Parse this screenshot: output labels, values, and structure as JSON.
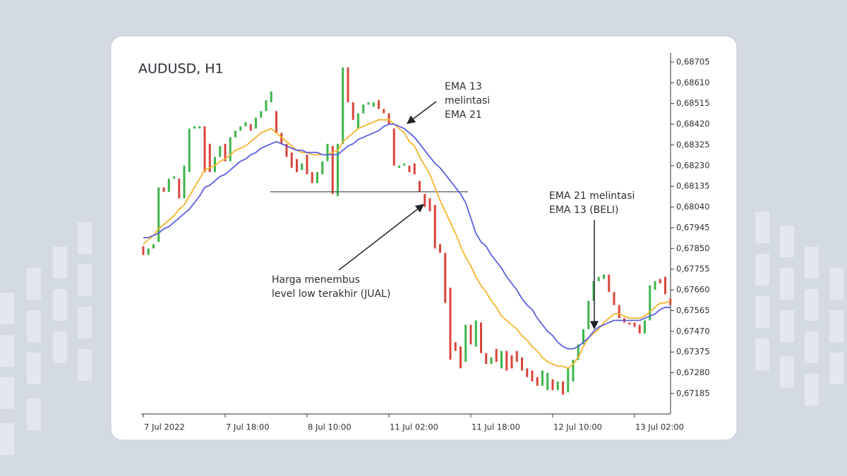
{
  "chart_data": {
    "type": "candlestick",
    "title": "AUDUSD, H1",
    "categories": [
      "7 Jul 2022",
      null,
      null,
      null,
      null,
      null,
      null,
      null,
      null,
      null,
      null,
      null,
      null,
      null,
      null,
      null,
      "7 Jul 18:00",
      null,
      null,
      null,
      null,
      null,
      null,
      null,
      null,
      null,
      null,
      null,
      null,
      null,
      null,
      null,
      "8 Jul 10:00",
      null,
      null,
      null,
      null,
      null,
      null,
      null,
      null,
      null,
      null,
      null,
      null,
      null,
      null,
      null,
      "11 Jul 02:00",
      null,
      null,
      null,
      null,
      null,
      null,
      null,
      null,
      null,
      null,
      null,
      null,
      null,
      null,
      null,
      "11 Jul 18:00",
      null,
      null,
      null,
      null,
      null,
      null,
      null,
      null,
      null,
      null,
      null,
      null,
      null,
      null,
      null,
      "12 Jul 10:00",
      null,
      null,
      null,
      null,
      null,
      null,
      null,
      null,
      null,
      null,
      null,
      null,
      null,
      null,
      null,
      "13 Jul 02:00",
      null,
      null,
      null,
      null,
      null,
      null,
      null
    ],
    "open": [
      0.6786,
      0.6782,
      0.6785,
      0.6788,
      0.6813,
      0.6811,
      0.6817,
      0.6817,
      0.6808,
      0.682,
      0.684,
      0.684,
      0.6841,
      0.6833,
      0.682,
      0.6827,
      0.6833,
      0.6825,
      0.6836,
      0.6839,
      0.6841,
      0.6842,
      0.684,
      0.6845,
      0.6848,
      0.6852,
      0.6848,
      0.6838,
      0.6833,
      0.6829,
      0.6826,
      0.6821,
      0.6828,
      0.682,
      0.6815,
      0.6819,
      0.6825,
      0.6832,
      0.6809,
      0.6833,
      0.6868,
      0.6852,
      0.684,
      0.6847,
      0.6851,
      0.685,
      0.6853,
      0.6849,
      0.6847,
      0.684,
      0.6822,
      0.6823,
      0.6823,
      0.6824,
      0.6816,
      0.681,
      0.6808,
      0.6805,
      0.6787,
      0.6783,
      0.6767,
      0.6742,
      0.674,
      0.6733,
      0.675,
      0.674,
      0.6751,
      0.6737,
      0.6732,
      0.6739,
      0.673,
      0.6738,
      0.6736,
      0.6738,
      0.6735,
      0.673,
      0.6729,
      0.6726,
      0.6722,
      0.672,
      0.6725,
      0.672,
      0.6724,
      0.6719,
      0.6724,
      0.6734,
      0.6741,
      0.6748,
      0.6761,
      0.677,
      0.6771,
      0.6773,
      0.6765,
      0.6759,
      0.6753,
      0.6751,
      0.6751,
      0.675,
      0.6746,
      0.6752,
      0.6766,
      0.6771,
      0.6772,
      0.6762
    ],
    "close": [
      0.6782,
      0.6785,
      0.6787,
      0.6813,
      0.6811,
      0.6817,
      0.6818,
      0.6808,
      0.6823,
      0.684,
      0.6841,
      0.6841,
      0.682,
      0.682,
      0.6827,
      0.6832,
      0.6825,
      0.6836,
      0.6839,
      0.6841,
      0.6843,
      0.6839,
      0.6845,
      0.6848,
      0.6853,
      0.6857,
      0.6838,
      0.6833,
      0.6827,
      0.6822,
      0.682,
      0.6824,
      0.6819,
      0.6815,
      0.682,
      0.6825,
      0.6833,
      0.681,
      0.6833,
      0.6868,
      0.6852,
      0.6844,
      0.6847,
      0.6851,
      0.6852,
      0.6852,
      0.6849,
      0.6847,
      0.6842,
      0.6823,
      0.6823,
      0.6824,
      0.682,
      0.6819,
      0.6811,
      0.6804,
      0.6802,
      0.6785,
      0.6783,
      0.676,
      0.6734,
      0.6738,
      0.673,
      0.675,
      0.6741,
      0.6752,
      0.6737,
      0.6732,
      0.6735,
      0.6733,
      0.6738,
      0.6729,
      0.673,
      0.6733,
      0.6729,
      0.6726,
      0.6724,
      0.6722,
      0.6729,
      0.6728,
      0.672,
      0.6724,
      0.6718,
      0.673,
      0.6734,
      0.6741,
      0.6748,
      0.6761,
      0.677,
      0.6772,
      0.6773,
      0.6765,
      0.6759,
      0.6753,
      0.6751,
      0.675,
      0.6749,
      0.6746,
      0.6752,
      0.6768,
      0.677,
      0.6769,
      0.6764,
      0.6759
    ],
    "up_color": "#3cb54a",
    "down_color": "#d9453a",
    "lines": [
      {
        "color": "#f5b42a",
        "values": [
          0.6787,
          0.6789,
          0.6791,
          0.6794,
          0.6796,
          0.6798,
          0.68,
          0.6803,
          0.6805,
          0.6809,
          0.6813,
          0.6817,
          0.6821,
          0.6822,
          0.6823,
          0.6825,
          0.6826,
          0.6828,
          0.683,
          0.6831,
          0.6832,
          0.6834,
          0.6836,
          0.6838,
          0.6839,
          0.684,
          0.6838,
          0.6836,
          0.6834,
          0.6832,
          0.683,
          0.6829,
          0.6829,
          0.6828,
          0.6828,
          0.6828,
          0.6828,
          0.6829,
          0.683,
          0.6834,
          0.6836,
          0.6838,
          0.684,
          0.6841,
          0.6842,
          0.6843,
          0.6844,
          0.6844,
          0.6844,
          0.6842,
          0.684,
          0.6838,
          0.6834,
          0.6832,
          0.6827,
          0.6823,
          0.6819,
          0.6813,
          0.6807,
          0.6802,
          0.6797,
          0.6792,
          0.6786,
          0.6781,
          0.6777,
          0.6772,
          0.6768,
          0.6765,
          0.6761,
          0.6758,
          0.6754,
          0.6752,
          0.675,
          0.6748,
          0.6745,
          0.6743,
          0.674,
          0.6738,
          0.6735,
          0.6733,
          0.6732,
          0.6731,
          0.6731,
          0.673,
          0.6732,
          0.6735,
          0.674,
          0.6744,
          0.6746,
          0.6748,
          0.6751,
          0.6753,
          0.6755,
          0.6755,
          0.6754,
          0.6753,
          0.6753,
          0.6753,
          0.6754,
          0.6756,
          0.6758,
          0.676,
          0.676,
          0.6761
        ]
      },
      {
        "color": "#5b5fe0",
        "values": [
          0.679,
          0.679,
          0.6791,
          0.6792,
          0.6794,
          0.6795,
          0.6797,
          0.6799,
          0.6801,
          0.6803,
          0.6806,
          0.6809,
          0.6813,
          0.6814,
          0.6816,
          0.6818,
          0.6819,
          0.6821,
          0.6823,
          0.6825,
          0.6826,
          0.6828,
          0.6829,
          0.6831,
          0.6832,
          0.6833,
          0.6834,
          0.6833,
          0.6832,
          0.6831,
          0.683,
          0.683,
          0.6829,
          0.6829,
          0.6829,
          0.6828,
          0.6828,
          0.6828,
          0.6828,
          0.683,
          0.6832,
          0.6833,
          0.6835,
          0.6836,
          0.6837,
          0.6838,
          0.6839,
          0.6841,
          0.6842,
          0.6842,
          0.6841,
          0.684,
          0.6838,
          0.6836,
          0.6833,
          0.683,
          0.6827,
          0.6824,
          0.6822,
          0.6819,
          0.6816,
          0.6813,
          0.681,
          0.6806,
          0.6799,
          0.6792,
          0.6788,
          0.6786,
          0.6782,
          0.6779,
          0.6776,
          0.6772,
          0.6769,
          0.6766,
          0.6762,
          0.6759,
          0.6757,
          0.6753,
          0.675,
          0.6747,
          0.6745,
          0.6742,
          0.674,
          0.6739,
          0.6739,
          0.674,
          0.6742,
          0.6744,
          0.6747,
          0.6749,
          0.675,
          0.6751,
          0.6752,
          0.6752,
          0.6752,
          0.6752,
          0.6752,
          0.6752,
          0.6753,
          0.6754,
          0.6755,
          0.6757,
          0.6758,
          0.6758
        ]
      }
    ],
    "level": 0.6811,
    "ylim": [
      0.67091,
      0.68747
    ],
    "yticks": [
      {
        "value": 0.68705,
        "label": "0,68705"
      },
      {
        "value": 0.6861,
        "label": "0,68610"
      },
      {
        "value": 0.68515,
        "label": "0,68515"
      },
      {
        "value": 0.6842,
        "label": "0,68420"
      },
      {
        "value": 0.68325,
        "label": "0,68325"
      },
      {
        "value": 0.6823,
        "label": "0,68230"
      },
      {
        "value": 0.68135,
        "label": "0,68135"
      },
      {
        "value": 0.6804,
        "label": "0,68040"
      },
      {
        "value": 0.67945,
        "label": "0,67945"
      },
      {
        "value": 0.6785,
        "label": "0,67850"
      },
      {
        "value": 0.67755,
        "label": "0,67755"
      },
      {
        "value": 0.6766,
        "label": "0,67660"
      },
      {
        "value": 0.67565,
        "label": "0,67565"
      },
      {
        "value": 0.6747,
        "label": "0,67470"
      },
      {
        "value": 0.67375,
        "label": "0,67375"
      },
      {
        "value": 0.6728,
        "label": "0,67280"
      },
      {
        "value": 0.67185,
        "label": "0,67185"
      }
    ],
    "annotations": [
      {
        "text": [
          "EMA 13",
          "melintasi",
          "EMA 21"
        ]
      },
      {
        "text": [
          "Harga menembus",
          "level low terakhir (JUAL)"
        ]
      },
      {
        "text": [
          "EMA 21 melintasi",
          "EMA 13 (BELI)"
        ]
      }
    ]
  }
}
